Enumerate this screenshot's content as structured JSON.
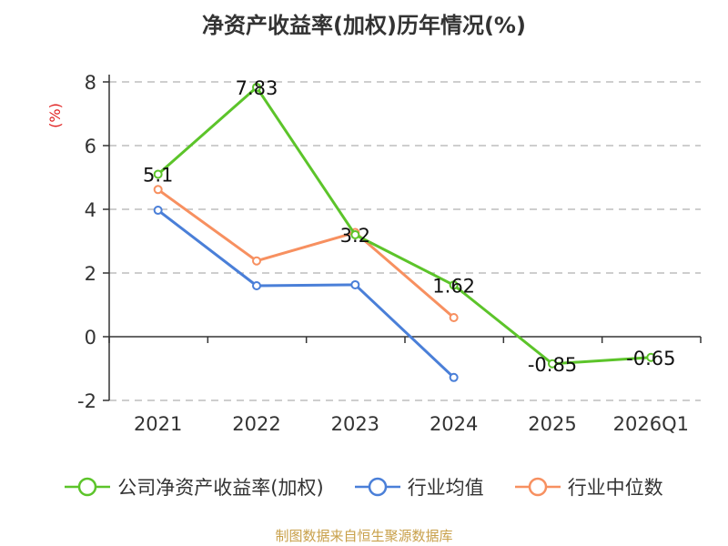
{
  "chart_data": {
    "type": "line",
    "title": "净资产收益率(加权)历年情况(%)",
    "ylabel": "(%)",
    "categories": [
      "2021",
      "2022",
      "2023",
      "2024",
      "2025",
      "2026Q1"
    ],
    "yticks": [
      -2,
      0,
      2,
      4,
      6,
      8
    ],
    "ylim": [
      -2,
      8
    ],
    "grid": true,
    "legend_position": "bottom",
    "series": [
      {
        "name": "公司净资产收益率(加权)",
        "color": "#5cc42a",
        "values": [
          5.1,
          7.83,
          3.2,
          1.62,
          -0.85,
          -0.65
        ],
        "labels": [
          "5.1",
          "7.83",
          "3.2",
          "1.62",
          "-0.85",
          "-0.65"
        ]
      },
      {
        "name": "行业均值",
        "color": "#4a7fd8",
        "values": [
          3.97,
          1.6,
          1.63,
          -1.28,
          null,
          null
        ]
      },
      {
        "name": "行业中位数",
        "color": "#f79060",
        "values": [
          4.62,
          2.38,
          3.27,
          0.6,
          null,
          null
        ]
      }
    ]
  },
  "source": "制图数据来自恒生聚源数据库"
}
